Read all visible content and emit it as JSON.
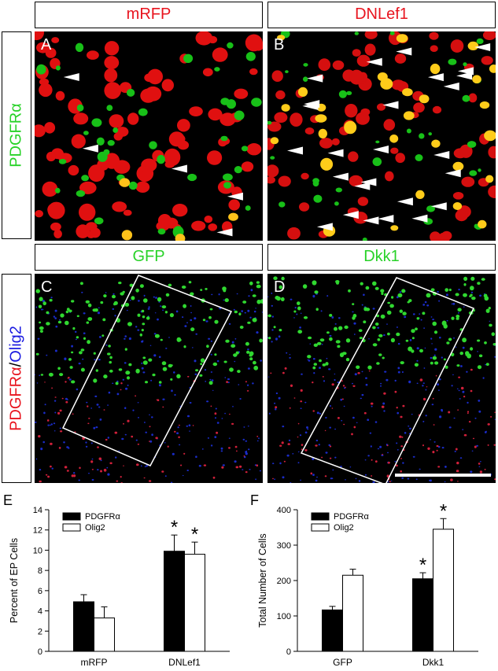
{
  "headers": {
    "top_left": "mRFP",
    "top_right": "DNLef1",
    "mid_left": "GFP",
    "mid_right": "Dkk1"
  },
  "side_labels": {
    "top": "PDGFRα",
    "bottom_part1": "PDGFRα",
    "bottom_sep": "/",
    "bottom_part2": "Olig2"
  },
  "panel_letters": [
    "A",
    "B",
    "C",
    "D",
    "E",
    "F"
  ],
  "colors": {
    "red_label": "#e8141e",
    "green_label": "#28d228",
    "blue_label": "#1a1ae0",
    "pdgfr_bar": "#000000",
    "olig2_bar": "#ffffff"
  },
  "chart_data": [
    {
      "type": "bar",
      "ylabel": "Percent of EP Cells",
      "xlabel": "",
      "categories": [
        "mRFP",
        "DNLef1"
      ],
      "ylim": [
        0,
        14
      ],
      "yticks": [
        "0",
        "2",
        "4",
        "6",
        "8",
        "10",
        "12",
        "14"
      ],
      "legend": "top-left",
      "series": [
        {
          "name": "PDGFRα",
          "values": [
            4.9,
            9.9
          ],
          "errors": [
            0.7,
            1.6
          ]
        },
        {
          "name": "Olig2",
          "values": [
            3.3,
            9.6
          ],
          "errors": [
            1.1,
            1.2
          ]
        }
      ],
      "annotations": [
        "*",
        "*"
      ]
    },
    {
      "type": "bar",
      "ylabel": "Total Number of Cells",
      "xlabel": "",
      "categories": [
        "GFP",
        "Dkk1"
      ],
      "ylim": [
        0,
        400
      ],
      "yticks": [
        "0",
        "100",
        "200",
        "300",
        "400"
      ],
      "legend": "top-left",
      "series": [
        {
          "name": "PDGFRα",
          "values": [
            117,
            205
          ],
          "errors": [
            10,
            17
          ]
        },
        {
          "name": "Olig2",
          "values": [
            215,
            345
          ],
          "errors": [
            17,
            30
          ]
        }
      ],
      "annotations": [
        "*",
        "*"
      ]
    }
  ]
}
